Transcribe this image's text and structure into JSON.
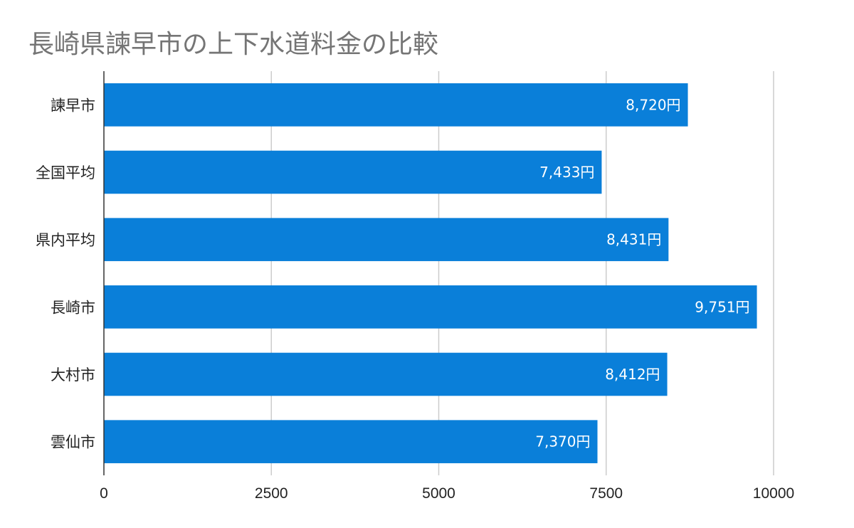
{
  "chart_data": {
    "type": "bar",
    "orientation": "horizontal",
    "title": "長崎県諫早市の上下水道料金の比較",
    "categories": [
      "諫早市",
      "全国平均",
      "県内平均",
      "長崎市",
      "大村市",
      "雲仙市"
    ],
    "values": [
      8720,
      7433,
      8431,
      9751,
      8412,
      7370
    ],
    "data_labels": [
      "8,720円",
      "7,433円",
      "8,431円",
      "9,751円",
      "8,412円",
      "7,370円"
    ],
    "xlim": [
      0,
      10000
    ],
    "xticks": [
      0,
      2500,
      5000,
      7500,
      10000
    ],
    "grid": true,
    "legend": "none",
    "colors": {
      "bar": "#0a7fd9"
    }
  }
}
